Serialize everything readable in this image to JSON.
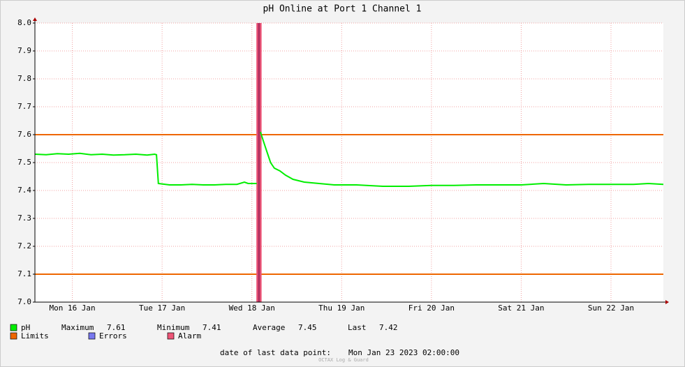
{
  "chart_data": {
    "type": "line",
    "title": "pH Online at Port 1 Channel 1",
    "xlim": [
      0,
      168
    ],
    "xticks": [
      {
        "value": 10,
        "label": "Mon 16 Jan"
      },
      {
        "value": 34,
        "label": "Tue 17 Jan"
      },
      {
        "value": 58,
        "label": "Wed 18 Jan"
      },
      {
        "value": 82,
        "label": "Thu 19 Jan"
      },
      {
        "value": 106,
        "label": "Fri 20 Jan"
      },
      {
        "value": 130,
        "label": "Sat 21 Jan"
      },
      {
        "value": 154,
        "label": "Sun 22 Jan"
      }
    ],
    "ylim": [
      7.0,
      8.0
    ],
    "yticks": [
      {
        "value": 7,
        "label": "7.0"
      },
      7.1,
      7.2,
      7.3,
      7.4,
      7.5,
      7.6,
      7.7,
      7.8,
      7.9,
      {
        "value": 8,
        "label": "8.0"
      }
    ],
    "grid": true,
    "x": [
      0,
      3,
      6,
      9,
      12,
      15,
      18,
      21,
      24,
      27,
      30,
      32,
      32.5,
      33,
      36,
      39,
      42,
      45,
      48,
      51,
      54,
      56,
      57,
      59.3,
      59.7,
      60.3,
      61,
      62,
      63,
      64,
      65.5,
      67,
      69,
      72,
      76,
      80,
      86,
      93,
      100,
      106,
      112,
      118,
      124,
      130,
      136,
      142,
      148,
      154,
      160,
      164,
      168
    ],
    "series": [
      {
        "name": "pH",
        "color": "#00ee00",
        "values": [
          7.53,
          7.528,
          7.532,
          7.53,
          7.533,
          7.528,
          7.53,
          7.527,
          7.528,
          7.53,
          7.527,
          7.53,
          7.528,
          7.425,
          7.42,
          7.42,
          7.422,
          7.42,
          7.42,
          7.422,
          7.422,
          7.43,
          7.425,
          7.425,
          null,
          7.61,
          7.58,
          7.54,
          7.5,
          7.48,
          7.47,
          7.455,
          7.44,
          7.43,
          7.425,
          7.42,
          7.42,
          7.415,
          7.415,
          7.418,
          7.418,
          7.42,
          7.42,
          7.42,
          7.425,
          7.42,
          7.422,
          7.422,
          7.422,
          7.425,
          7.422
        ]
      }
    ],
    "limits": {
      "name": "Limits",
      "color": "#ee6600",
      "values": [
        7.6,
        7.1
      ]
    },
    "errors": {
      "name": "Errors",
      "color": "#7777ee"
    },
    "alarm": {
      "name": "Alarm",
      "color": "#ee5577",
      "x": [
        59.2,
        60.6
      ]
    },
    "stats": [
      {
        "label": "Maximum",
        "value": 7.61
      },
      {
        "label": "Minimum",
        "value": 7.41
      },
      {
        "label": "Average",
        "value": 7.45
      },
      {
        "label": "Last",
        "value": 7.42
      }
    ],
    "footer_label": "date of last data point:",
    "footer_value": "Mon Jan 23 2023 02:00:00",
    "watermark": "OCTAX Log & Guard"
  }
}
